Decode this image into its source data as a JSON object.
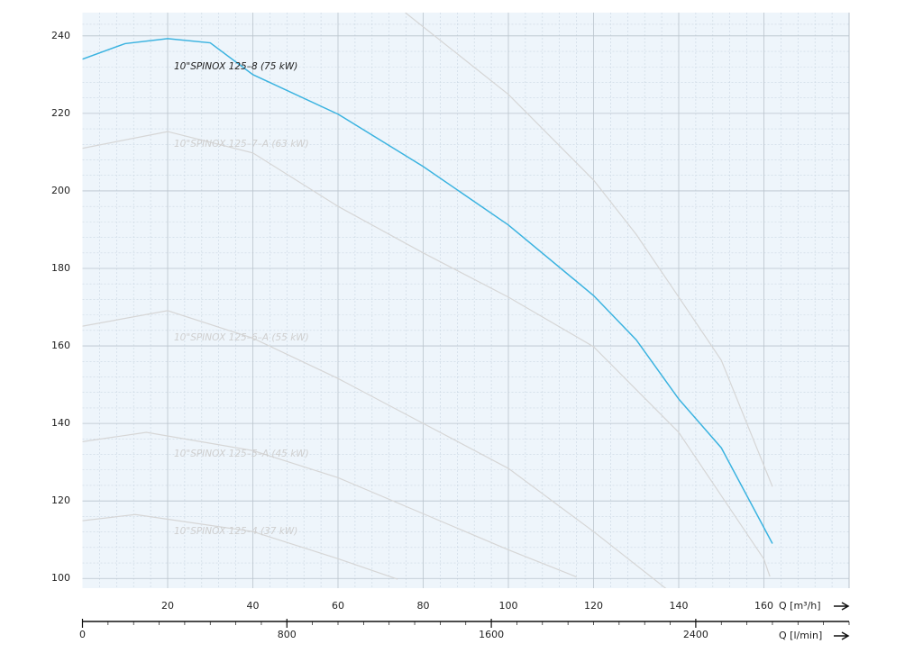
{
  "chart_data": {
    "type": "line",
    "xlabel": "Q [m³/h]",
    "x2label": "Q [l/min]",
    "xlim": [
      0,
      180
    ],
    "xticks": [
      20,
      40,
      60,
      80,
      100,
      120,
      140,
      160
    ],
    "x2lim": [
      0,
      3000
    ],
    "x2ticks": [
      0,
      800,
      1600,
      2400
    ],
    "ylim": [
      97.5,
      246
    ],
    "yticks": [
      100,
      120,
      140,
      160,
      180,
      200,
      220,
      240
    ],
    "grid": true,
    "series": [
      {
        "name": "10\"SPINOX 125–8 (75 kW)",
        "color": "#3bb3e0",
        "x": [
          0,
          10,
          20,
          30,
          40,
          60,
          80,
          100,
          120,
          130,
          140,
          150,
          162
        ],
        "values": [
          234,
          238,
          239.3,
          238.2,
          230,
          219.8,
          206.3,
          191.2,
          173,
          161.6,
          146.3,
          133.7,
          109
        ]
      },
      {
        "name": "10\"SPINOX 125–7–A (63 kW)",
        "color": "#d6d6d6",
        "x": [
          0,
          20,
          40,
          60,
          80,
          100,
          120,
          140,
          160,
          161.4
        ],
        "values": [
          211,
          215.3,
          209.8,
          196,
          184,
          172.6,
          159.8,
          137.7,
          105,
          100.5
        ]
      },
      {
        "name": "10\"SPINOX 125–6–A (55 kW)",
        "color": "#d6d6d6",
        "x": [
          0,
          20,
          40,
          60,
          80,
          100,
          120,
          137
        ],
        "values": [
          165.1,
          169.1,
          162,
          151.6,
          140,
          128.4,
          112.1,
          97.4
        ]
      },
      {
        "name": "10\"SPINOX 125–5–A (45 kW)",
        "color": "#d6d6d6",
        "x": [
          0,
          15,
          40,
          60,
          80,
          100,
          116
        ],
        "values": [
          135.3,
          137.7,
          133,
          126,
          116.7,
          107.4,
          100.4
        ]
      },
      {
        "name": "10\"SPINOX 125–4 (37 kW)",
        "color": "#d6d6d6",
        "x": [
          0,
          12.4,
          40,
          60,
          74
        ],
        "values": [
          114.9,
          116.5,
          112.1,
          105.1,
          99.8
        ]
      },
      {
        "color": "#d6d6d6",
        "x": [
          75.8,
          100,
          120,
          130,
          140,
          150,
          162
        ],
        "values": [
          246,
          224.9,
          202.8,
          188.8,
          172.6,
          156.3,
          123.7
        ]
      }
    ]
  }
}
